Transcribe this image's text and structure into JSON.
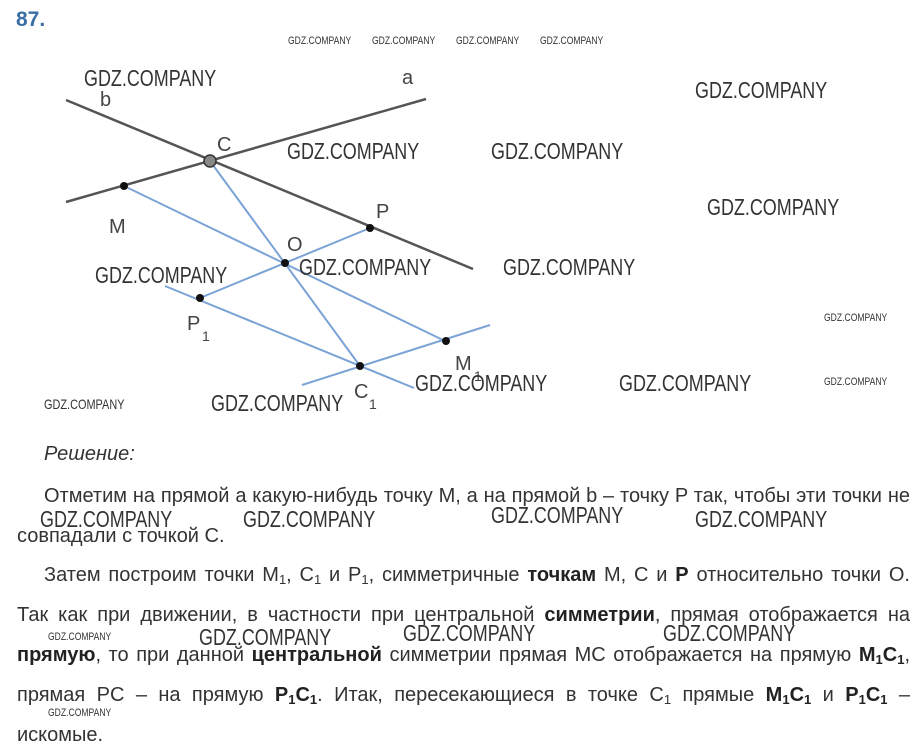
{
  "problem_number": "87.",
  "figure": {
    "labels": {
      "a": "a",
      "b": "b",
      "C": "C",
      "M": "M",
      "P": "P",
      "O": "O",
      "P1": "P",
      "P1_sub": "1",
      "C1": "C",
      "C1_sub": "1",
      "M1": "M",
      "M1_sub": "1"
    },
    "colors": {
      "given_lines": "#555555",
      "constructed_lines": "#7ba3d6",
      "points": "#111111"
    }
  },
  "watermark_text": "GDZ.COMPANY",
  "solution": {
    "heading": "Решение:",
    "p1": "Отметим на прямой a какую-нибудь точку M, а на прямой b – точку P так, чтобы эти точки не совпадали с точкой С.",
    "p2": {
      "s1": "Затем построим точки M",
      "sub1": "1",
      "s2": ", С",
      "sub2": "1",
      "s3": " и P",
      "sub3": "1",
      "s4": ", симметричные ",
      "b1": "точкам",
      "s5": " M, C и ",
      "b2": "P",
      "s6": " относительно точки O. Так как при движении, в частности при центральной ",
      "b3": "симметрии",
      "s7": ", прямая отображается на ",
      "b4": "прямую",
      "s8": ", то при данной ",
      "b5": "центральной",
      "s9": " симметрии прямая MC отображается на прямую ",
      "b6": "M",
      "b6sub": "1",
      "b6b": "C",
      "b6bsub": "1",
      "s10": ", прямая PC – на прямую ",
      "b7": "P",
      "b7sub": "1",
      "b7b": "C",
      "b7bsub": "1",
      "s11": ". Итак, пересекающиеся в точке С",
      "sub4": "1",
      "s12": " прямые ",
      "b8": "M",
      "b8sub": "1",
      "b8b": "C",
      "b8bsub": "1",
      "s13": " и ",
      "b9": "P",
      "b9sub": "1",
      "b9b": "C",
      "b9bsub": "1",
      "s14": " – искомые."
    }
  }
}
